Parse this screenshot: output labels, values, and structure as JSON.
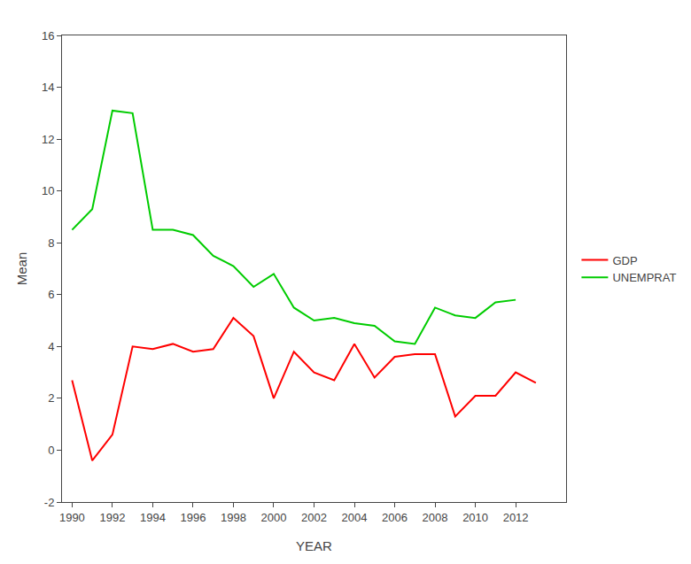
{
  "chart_data": {
    "type": "line",
    "x_label": "YEAR",
    "y_label": "Mean",
    "x": [
      1990,
      1991,
      1992,
      1993,
      1994,
      1995,
      1996,
      1997,
      1998,
      1999,
      2000,
      2001,
      2002,
      2003,
      2004,
      2005,
      2006,
      2007,
      2008,
      2009,
      2010,
      2011,
      2012,
      2013
    ],
    "series": [
      {
        "name": "GDP",
        "color": "#ff0000",
        "values": [
          2.7,
          -0.4,
          0.6,
          4.0,
          3.9,
          4.1,
          3.8,
          3.9,
          5.1,
          4.4,
          2.0,
          3.8,
          3.0,
          2.7,
          4.1,
          2.8,
          3.6,
          3.7,
          3.7,
          1.3,
          2.1,
          2.1,
          3.0,
          2.6
        ]
      },
      {
        "name": "UNEMPRAT",
        "color": "#00cc00",
        "values": [
          8.5,
          9.3,
          13.1,
          13.0,
          8.5,
          8.5,
          8.3,
          7.5,
          7.1,
          6.3,
          6.8,
          5.5,
          5.0,
          5.1,
          4.9,
          4.8,
          4.2,
          4.1,
          5.5,
          5.2,
          5.1,
          5.7,
          5.8,
          null
        ]
      }
    ],
    "xlim": [
      1989.5,
      2014.5
    ],
    "xticks": [
      1990,
      1992,
      1994,
      1996,
      1998,
      2000,
      2002,
      2004,
      2006,
      2008,
      2010,
      2012
    ],
    "ylim": [
      -2,
      16
    ],
    "yticks": [
      -2,
      0,
      2,
      4,
      6,
      8,
      10,
      12,
      14,
      16
    ],
    "grid": false,
    "legend": "right"
  }
}
